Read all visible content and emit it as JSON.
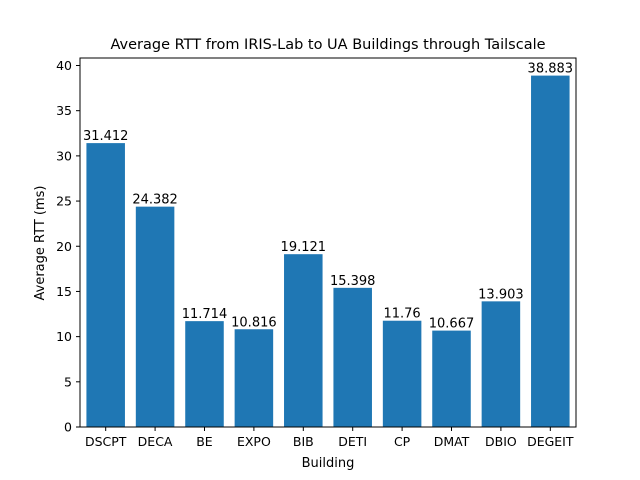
{
  "chart_data": {
    "type": "bar",
    "title": "Average RTT from IRIS-Lab to UA Buildings through Tailscale",
    "xlabel": "Building",
    "ylabel": "Average RTT (ms)",
    "categories": [
      "DSCPT",
      "DECA",
      "BE",
      "EXPO",
      "BIB",
      "DETI",
      "CP",
      "DMAT",
      "DBIO",
      "DEGEIT"
    ],
    "values": [
      31.412,
      24.382,
      11.714,
      10.816,
      19.121,
      15.398,
      11.76,
      10.667,
      13.903,
      38.883
    ],
    "value_labels": [
      "31.412",
      "24.382",
      "11.714",
      "10.816",
      "19.121",
      "15.398",
      "11.76",
      "10.667",
      "13.903",
      "38.883"
    ],
    "ylim": [
      0,
      40.83
    ],
    "yticks": [
      0,
      5,
      10,
      15,
      20,
      25,
      30,
      35,
      40
    ],
    "grid": false,
    "bar_color": "#1f77b4"
  }
}
